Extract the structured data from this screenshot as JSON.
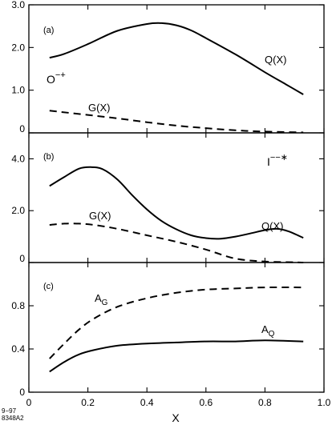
{
  "chart_data": [
    {
      "type": "line",
      "panel_label": "(a)",
      "annotation_base": "O",
      "annotation_sup": "−+",
      "xlim": [
        0,
        1.0
      ],
      "ylim": [
        0,
        3.0
      ],
      "y_ticks": [
        {
          "value": 0,
          "label": "0"
        },
        {
          "value": 1.0,
          "label": "1.0"
        },
        {
          "value": 2.0,
          "label": "2.0"
        },
        {
          "value": 3.0,
          "label": "3.0"
        }
      ],
      "series": [
        {
          "name": "Q(X)",
          "style": "solid",
          "x": [
            0.07,
            0.12,
            0.2,
            0.3,
            0.4,
            0.45,
            0.5,
            0.55,
            0.6,
            0.7,
            0.8,
            0.87,
            0.93
          ],
          "y": [
            1.76,
            1.85,
            2.08,
            2.39,
            2.55,
            2.57,
            2.52,
            2.4,
            2.22,
            1.84,
            1.42,
            1.14,
            0.9
          ]
        },
        {
          "name": "G(X)",
          "style": "dashed",
          "x": [
            0.07,
            0.2,
            0.3,
            0.4,
            0.5,
            0.6,
            0.7,
            0.8,
            0.93
          ],
          "y": [
            0.52,
            0.42,
            0.34,
            0.25,
            0.17,
            0.11,
            0.06,
            0.03,
            0.01
          ]
        }
      ]
    },
    {
      "type": "line",
      "panel_label": "(b)",
      "annotation_base": "I",
      "annotation_sup": "−−∗",
      "xlim": [
        0,
        1.0
      ],
      "ylim": [
        0,
        5.0
      ],
      "y_ticks": [
        {
          "value": 0,
          "label": "0"
        },
        {
          "value": 2.0,
          "label": "2.0"
        },
        {
          "value": 4.0,
          "label": "4.0"
        }
      ],
      "series": [
        {
          "name": "Q(X)",
          "style": "solid",
          "x": [
            0.07,
            0.12,
            0.17,
            0.21,
            0.25,
            0.3,
            0.35,
            0.4,
            0.45,
            0.5,
            0.55,
            0.6,
            0.65,
            0.7,
            0.75,
            0.8,
            0.84,
            0.88,
            0.93
          ],
          "y": [
            2.95,
            3.3,
            3.62,
            3.68,
            3.6,
            3.2,
            2.6,
            2.05,
            1.6,
            1.28,
            1.05,
            0.94,
            0.92,
            1.0,
            1.12,
            1.25,
            1.3,
            1.2,
            0.95
          ]
        },
        {
          "name": "G(X)",
          "style": "dashed",
          "x": [
            0.07,
            0.12,
            0.17,
            0.22,
            0.3,
            0.4,
            0.5,
            0.6,
            0.7,
            0.8,
            0.9,
            0.93
          ],
          "y": [
            1.45,
            1.5,
            1.5,
            1.45,
            1.3,
            1.05,
            0.8,
            0.5,
            0.15,
            0.04,
            0.01,
            0.0
          ]
        }
      ]
    },
    {
      "type": "line",
      "panel_label": "(c)",
      "xlim": [
        0,
        1.0
      ],
      "xlabel": "X",
      "ylim": [
        0,
        1.2
      ],
      "x_ticks": [
        {
          "value": 0,
          "label": "0"
        },
        {
          "value": 0.2,
          "label": "0.2"
        },
        {
          "value": 0.4,
          "label": "0.4"
        },
        {
          "value": 0.6,
          "label": "0.6"
        },
        {
          "value": 0.8,
          "label": "0.8"
        },
        {
          "value": 1.0,
          "label": "1.0"
        }
      ],
      "y_ticks": [
        {
          "value": 0,
          "label": "0"
        },
        {
          "value": 0.4,
          "label": "0.4"
        },
        {
          "value": 0.8,
          "label": "0.8"
        }
      ],
      "series": [
        {
          "name": "AQ",
          "label_base": "A",
          "label_sub": "Q",
          "style": "solid",
          "x": [
            0.07,
            0.12,
            0.17,
            0.22,
            0.3,
            0.4,
            0.5,
            0.6,
            0.7,
            0.8,
            0.93
          ],
          "y": [
            0.19,
            0.28,
            0.35,
            0.39,
            0.43,
            0.45,
            0.46,
            0.47,
            0.47,
            0.48,
            0.47
          ]
        },
        {
          "name": "AG",
          "label_base": "A",
          "label_sub": "G",
          "style": "dashed",
          "x": [
            0.07,
            0.12,
            0.17,
            0.22,
            0.3,
            0.4,
            0.5,
            0.6,
            0.7,
            0.8,
            0.93
          ],
          "y": [
            0.31,
            0.45,
            0.58,
            0.68,
            0.79,
            0.87,
            0.92,
            0.95,
            0.96,
            0.97,
            0.97
          ]
        }
      ]
    }
  ],
  "footnote": [
    "9−97",
    "8348A2"
  ]
}
